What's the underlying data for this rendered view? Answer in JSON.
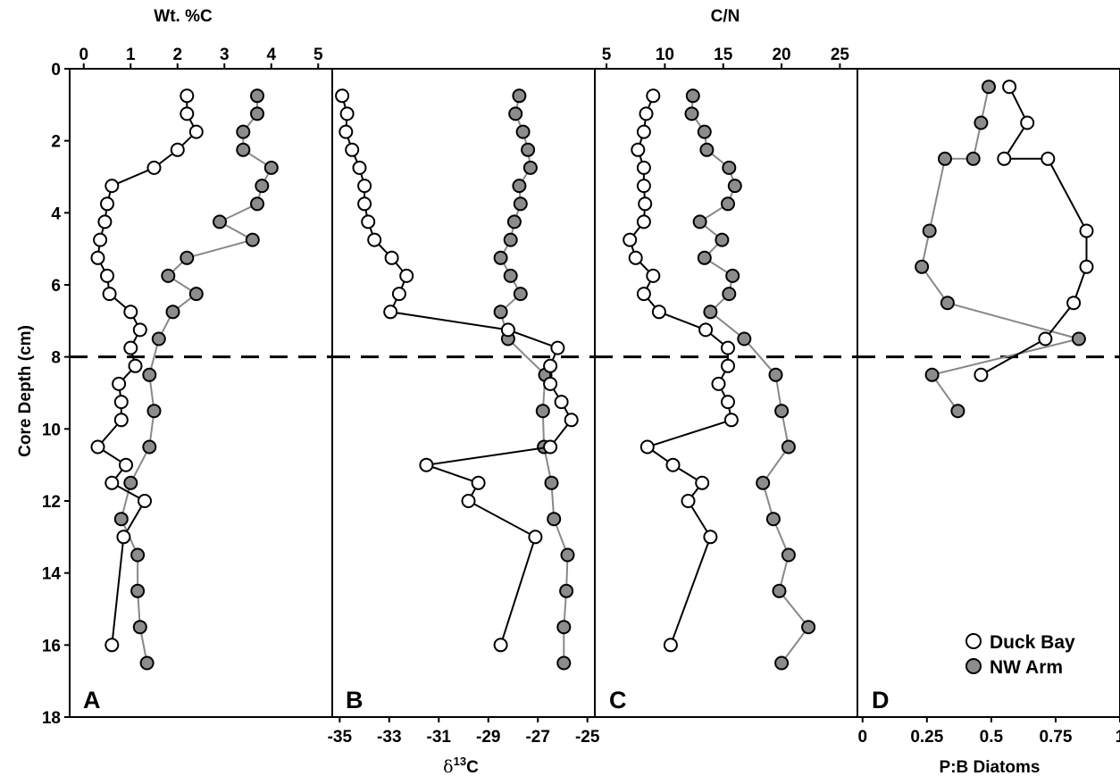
{
  "colors": {
    "duck_bay": "#ffffff",
    "nw_arm": "#8c8c8c",
    "duck_line": "#000000",
    "nw_line": "#888888"
  },
  "legend": {
    "duck_bay": "Duck Bay",
    "nw_arm": "NW Arm",
    "placement": "bottom-right"
  },
  "chart_data": [
    {
      "type": "line",
      "panel": "A",
      "xlabel": "Wt. %C",
      "ylabel": "Core Depth (cm)",
      "xlim": [
        -0.3,
        5.3
      ],
      "ylim": [
        0,
        18
      ],
      "xticks": [
        "0",
        "1",
        "2",
        "3",
        "4",
        "5"
      ],
      "xtick_values": [
        0,
        1,
        2,
        3,
        4,
        5
      ],
      "yticks": [
        "0",
        "2",
        "4",
        "6",
        "8",
        "10",
        "12",
        "14",
        "16",
        "18"
      ],
      "reference_depth": 8,
      "series": [
        {
          "name": "Duck Bay",
          "x": [
            2.2,
            2.2,
            2.4,
            2.0,
            1.5,
            0.6,
            0.5,
            0.45,
            0.35,
            0.3,
            0.5,
            0.55,
            1.0,
            1.2,
            1.0,
            1.1,
            0.75,
            0.8,
            0.8,
            0.3,
            0.9,
            0.6,
            1.3,
            0.85,
            0.6
          ],
          "y": [
            0.75,
            1.25,
            1.75,
            2.25,
            2.75,
            3.25,
            3.75,
            4.25,
            4.75,
            5.25,
            5.75,
            6.25,
            6.75,
            7.25,
            7.75,
            8.25,
            8.75,
            9.25,
            9.75,
            10.5,
            11.0,
            11.5,
            12.0,
            13.0,
            16.0
          ]
        },
        {
          "name": "NW Arm",
          "x": [
            3.7,
            3.7,
            3.4,
            3.4,
            4.0,
            3.8,
            3.7,
            2.9,
            3.6,
            2.2,
            1.8,
            2.4,
            1.9,
            1.6,
            1.4,
            1.5,
            1.4,
            1.0,
            0.8,
            1.15,
            1.15,
            1.2,
            1.35
          ],
          "y": [
            0.75,
            1.25,
            1.75,
            2.25,
            2.75,
            3.25,
            3.75,
            4.25,
            4.75,
            5.25,
            5.75,
            6.25,
            6.75,
            7.5,
            8.5,
            9.5,
            10.5,
            11.5,
            12.5,
            13.5,
            14.5,
            15.5,
            16.5
          ]
        }
      ]
    },
    {
      "type": "line",
      "panel": "B",
      "xlabel": "δ13C",
      "xlim": [
        -35.3,
        -24.7
      ],
      "ylim": [
        0,
        18
      ],
      "xticks": [
        "-35",
        "-33",
        "-31",
        "-29",
        "-27",
        "-25"
      ],
      "xtick_values": [
        -35,
        -33,
        -31,
        -29,
        -27,
        -25
      ],
      "reference_depth": 8,
      "series": [
        {
          "name": "Duck Bay",
          "x": [
            -34.9,
            -34.7,
            -34.75,
            -34.5,
            -34.2,
            -34.0,
            -34.0,
            -33.85,
            -33.6,
            -32.9,
            -32.3,
            -32.6,
            -32.95,
            -28.2,
            -26.2,
            -26.5,
            -26.5,
            -26.05,
            -25.65,
            -26.5,
            -31.5,
            -29.4,
            -29.8,
            -27.1,
            -28.5
          ],
          "y": [
            0.75,
            1.25,
            1.75,
            2.25,
            2.75,
            3.25,
            3.75,
            4.25,
            4.75,
            5.25,
            5.75,
            6.25,
            6.75,
            7.25,
            7.75,
            8.25,
            8.75,
            9.25,
            9.75,
            10.5,
            11.0,
            11.5,
            12.0,
            13.0,
            16.0
          ]
        },
        {
          "name": "NW Arm",
          "x": [
            -27.75,
            -27.9,
            -27.6,
            -27.4,
            -27.3,
            -27.75,
            -27.7,
            -27.95,
            -28.1,
            -28.5,
            -28.1,
            -27.7,
            -28.5,
            -28.2,
            -26.7,
            -26.8,
            -26.75,
            -26.45,
            -26.35,
            -25.8,
            -25.85,
            -25.95,
            -25.95
          ],
          "y": [
            0.75,
            1.25,
            1.75,
            2.25,
            2.75,
            3.25,
            3.75,
            4.25,
            4.75,
            5.25,
            5.75,
            6.25,
            6.75,
            7.5,
            8.5,
            9.5,
            10.5,
            11.5,
            12.5,
            13.5,
            14.5,
            15.5,
            16.5
          ]
        }
      ]
    },
    {
      "type": "line",
      "panel": "C",
      "xlabel": "C/N",
      "xlim": [
        4.0,
        26.5
      ],
      "ylim": [
        0,
        18
      ],
      "xticks": [
        "5",
        "10",
        "15",
        "20",
        "25"
      ],
      "xtick_values": [
        5,
        10,
        15,
        20,
        25
      ],
      "reference_depth": 8,
      "series": [
        {
          "name": "Duck Bay",
          "x": [
            9.0,
            8.4,
            8.2,
            7.7,
            8.2,
            8.2,
            8.3,
            8.2,
            7.0,
            7.5,
            9.0,
            8.2,
            9.5,
            13.5,
            15.4,
            15.4,
            14.6,
            15.4,
            15.7,
            8.5,
            10.7,
            13.2,
            12.0,
            13.9,
            10.5
          ],
          "y": [
            0.75,
            1.25,
            1.75,
            2.25,
            2.75,
            3.25,
            3.75,
            4.25,
            4.75,
            5.25,
            5.75,
            6.25,
            6.75,
            7.25,
            7.75,
            8.25,
            8.75,
            9.25,
            9.75,
            10.5,
            11.0,
            11.5,
            12.0,
            13.0,
            16.0
          ]
        },
        {
          "name": "NW Arm",
          "x": [
            12.4,
            12.3,
            13.4,
            13.6,
            15.5,
            16.0,
            15.4,
            13.0,
            14.9,
            13.4,
            15.8,
            15.5,
            13.9,
            16.8,
            19.5,
            20.0,
            20.6,
            18.4,
            19.3,
            20.6,
            19.8,
            22.3,
            20.0
          ],
          "y": [
            0.75,
            1.25,
            1.75,
            2.25,
            2.75,
            3.25,
            3.75,
            4.25,
            4.75,
            5.25,
            5.75,
            6.25,
            6.75,
            7.5,
            8.5,
            9.5,
            10.5,
            11.5,
            12.5,
            13.5,
            14.5,
            15.5,
            16.5
          ]
        }
      ]
    },
    {
      "type": "line",
      "panel": "D",
      "xlabel": "P:B Diatoms",
      "xlim": [
        -0.02,
        1.0
      ],
      "ylim": [
        0,
        18
      ],
      "xticks": [
        "0",
        "0.25",
        "0.5",
        "0.75",
        "1"
      ],
      "xtick_values": [
        0,
        0.25,
        0.5,
        0.75,
        1.0
      ],
      "reference_depth": 8,
      "series": [
        {
          "name": "Duck Bay",
          "x": [
            0.57,
            0.64,
            0.55,
            0.72,
            0.87,
            0.87,
            0.82,
            0.71,
            0.46
          ],
          "y": [
            0.5,
            1.5,
            2.5,
            2.5,
            4.5,
            5.5,
            6.5,
            7.5,
            8.5
          ]
        },
        {
          "name": "NW Arm",
          "x": [
            0.49,
            0.46,
            0.43,
            0.32,
            0.26,
            0.23,
            0.33,
            0.84,
            0.27,
            0.37
          ],
          "y": [
            0.5,
            1.5,
            2.5,
            2.5,
            4.5,
            5.5,
            6.5,
            7.5,
            8.5,
            9.5
          ]
        }
      ]
    }
  ]
}
